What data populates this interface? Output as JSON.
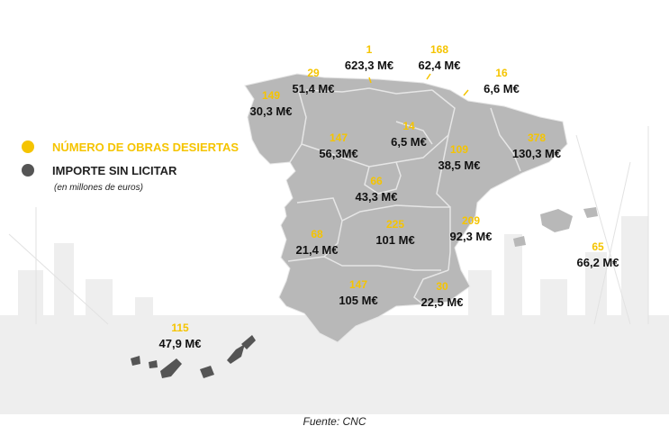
{
  "colors": {
    "obras": "#F5C400",
    "importe": "#555555",
    "region_fill": "#B8B8B8",
    "border": "#E6E6E6"
  },
  "legend": {
    "obras_label": "NÚMERO DE OBRAS DESIERTAS",
    "importe_label": "IMPORTE SIN LICITAR",
    "importe_sub": "(en millones de euros)"
  },
  "regions": [
    {
      "id": "galicia",
      "obras": "149",
      "importe": "30,3 M€"
    },
    {
      "id": "asturias",
      "obras": "29",
      "importe": "51,4 M€"
    },
    {
      "id": "cantabria",
      "obras": "1",
      "importe": "623,3 M€"
    },
    {
      "id": "pais-vasco",
      "obras": "168",
      "importe": "62,4 M€"
    },
    {
      "id": "navarra",
      "obras": "16",
      "importe": "6,6 M€"
    },
    {
      "id": "castilla-leon",
      "obras": "147",
      "importe": "56,3M€"
    },
    {
      "id": "la-rioja",
      "obras": "14",
      "importe": "6,5 M€"
    },
    {
      "id": "aragon",
      "obras": "109",
      "importe": "38,5 M€"
    },
    {
      "id": "cataluna",
      "obras": "378",
      "importe": "130,3 M€"
    },
    {
      "id": "madrid",
      "obras": "66",
      "importe": "43,3 M€"
    },
    {
      "id": "extremadura",
      "obras": "68",
      "importe": "21,4 M€"
    },
    {
      "id": "castilla-la-mancha",
      "obras": "225",
      "importe": "101 M€"
    },
    {
      "id": "valencia",
      "obras": "209",
      "importe": "92,3 M€"
    },
    {
      "id": "baleares",
      "obras": "65",
      "importe": "66,2 M€"
    },
    {
      "id": "andalucia",
      "obras": "147",
      "importe": "105 M€"
    },
    {
      "id": "murcia",
      "obras": "30",
      "importe": "22,5 M€"
    },
    {
      "id": "canarias",
      "obras": "115",
      "importe": "47,9 M€"
    }
  ],
  "source": "Fuente: CNC"
}
